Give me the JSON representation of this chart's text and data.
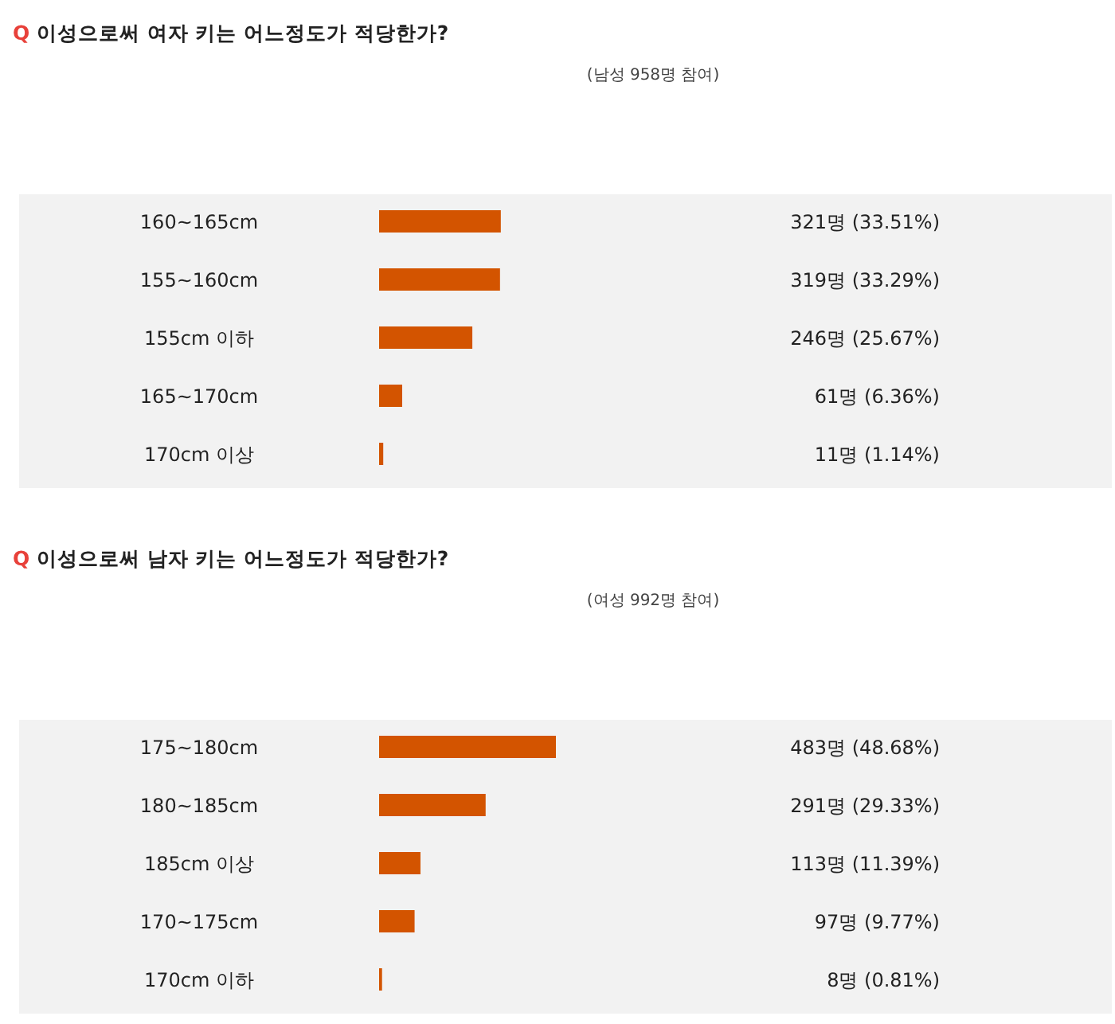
{
  "chart_data": [
    {
      "type": "bar",
      "orientation": "horizontal",
      "title": "Q 이성으로써 여자 키는 어느정도가 적당한가?",
      "annotations": [
        "(남성 958명 참여)"
      ],
      "categories": [
        "160~165cm",
        "155~160cm",
        "155cm 이하",
        "165~170cm",
        "170cm 이상"
      ],
      "values": [
        33.51,
        33.29,
        25.67,
        6.36,
        1.14
      ],
      "value_labels": [
        "321명 (33.51%)",
        "319명 (33.29%)",
        "246명 (25.67%)",
        "61명 (6.36%)",
        "11명 (1.14%)"
      ],
      "color": "#d35400"
    },
    {
      "type": "bar",
      "orientation": "horizontal",
      "title": "Q 이성으로써 남자 키는 어느정도가 적당한가?",
      "annotations": [
        "(여성 992명 참여)"
      ],
      "categories": [
        "175~180cm",
        "180~185cm",
        "185cm 이상",
        "170~175cm",
        "170cm 이하"
      ],
      "values": [
        48.68,
        29.33,
        11.39,
        9.77,
        0.81
      ],
      "value_labels": [
        "483명 (48.68%)",
        "291명 (29.33%)",
        "113명 (11.39%)",
        "97명 (9.77%)",
        "8명 (0.81%)"
      ],
      "color": "#d35400"
    }
  ]
}
